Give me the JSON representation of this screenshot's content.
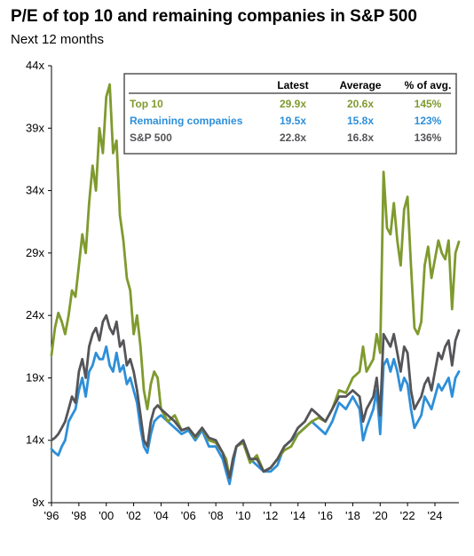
{
  "chart_data": {
    "type": "line",
    "title": "P/E of top 10 and remaining companies in S&P 500",
    "subtitle": "Next 12 months",
    "xlabel": "",
    "ylabel": "",
    "xlim": [
      1996,
      2025.75
    ],
    "ylim": [
      9,
      44
    ],
    "y_ticks": [
      9,
      14,
      19,
      24,
      29,
      34,
      39,
      44
    ],
    "y_tick_labels": [
      "9x",
      "14x",
      "19x",
      "24x",
      "29x",
      "34x",
      "39x",
      "44x"
    ],
    "x_ticks": [
      1996,
      1998,
      2000,
      2002,
      2004,
      2006,
      2008,
      2010,
      2012,
      2014,
      2016,
      2018,
      2020,
      2022,
      2024
    ],
    "x_tick_labels": [
      "'96",
      "'98",
      "'00",
      "'02",
      "'04",
      "'06",
      "'08",
      "'10",
      "'12",
      "'14",
      "'16",
      "'18",
      "'20",
      "'22",
      "'24"
    ],
    "grid": false,
    "legend": {
      "placement": "top-right",
      "headers": [
        "Latest",
        "Average",
        "% of avg."
      ],
      "rows": [
        {
          "label": "Top 10",
          "latest": "29.9x",
          "average": "20.6x",
          "pct": "145%",
          "color": "#7f9a2e"
        },
        {
          "label": "Remaining companies",
          "latest": "19.5x",
          "average": "15.8x",
          "pct": "123%",
          "color": "#2e8fd9"
        },
        {
          "label": "S&P 500",
          "latest": "22.8x",
          "average": "16.8x",
          "pct": "136%",
          "color": "#555559"
        }
      ]
    },
    "series": [
      {
        "name": "Top 10",
        "color": "#7f9a2e",
        "x": [
          1996.0,
          1996.25,
          1996.5,
          1996.75,
          1997.0,
          1997.25,
          1997.5,
          1997.75,
          1998.0,
          1998.25,
          1998.5,
          1998.75,
          1999.0,
          1999.25,
          1999.5,
          1999.75,
          2000.0,
          2000.25,
          2000.5,
          2000.75,
          2001.0,
          2001.25,
          2001.5,
          2001.75,
          2002.0,
          2002.25,
          2002.5,
          2002.75,
          2003.0,
          2003.25,
          2003.5,
          2003.75,
          2004.0,
          2004.5,
          2005.0,
          2005.5,
          2006.0,
          2006.5,
          2007.0,
          2007.5,
          2008.0,
          2008.5,
          2008.75,
          2009.0,
          2009.25,
          2009.5,
          2010.0,
          2010.5,
          2011.0,
          2011.5,
          2012.0,
          2012.5,
          2013.0,
          2013.5,
          2014.0,
          2014.5,
          2015.0,
          2015.5,
          2016.0,
          2016.5,
          2017.0,
          2017.5,
          2018.0,
          2018.5,
          2018.75,
          2019.0,
          2019.5,
          2019.75,
          2020.0,
          2020.25,
          2020.5,
          2020.75,
          2021.0,
          2021.25,
          2021.5,
          2021.75,
          2022.0,
          2022.25,
          2022.5,
          2022.75,
          2023.0,
          2023.25,
          2023.5,
          2023.75,
          2024.0,
          2024.25,
          2024.5,
          2024.75,
          2025.0,
          2025.25,
          2025.5,
          2025.75
        ],
        "values": [
          20.8,
          23.0,
          24.2,
          23.5,
          22.5,
          24.0,
          26.0,
          25.5,
          28.0,
          30.5,
          29.0,
          33.0,
          36.0,
          34.0,
          39.0,
          37.0,
          41.5,
          42.5,
          37.0,
          38.0,
          32.0,
          30.0,
          27.0,
          26.0,
          22.5,
          24.0,
          21.5,
          18.0,
          16.5,
          18.5,
          19.5,
          19.0,
          16.5,
          15.5,
          16.0,
          14.8,
          15.0,
          14.2,
          15.0,
          14.0,
          13.8,
          13.0,
          12.5,
          11.0,
          12.5,
          13.5,
          13.8,
          12.2,
          12.8,
          11.5,
          11.8,
          12.5,
          13.2,
          13.5,
          14.5,
          15.0,
          15.5,
          15.8,
          15.5,
          16.5,
          18.0,
          17.8,
          19.0,
          19.5,
          21.5,
          19.5,
          20.5,
          22.5,
          21.0,
          35.5,
          31.0,
          30.5,
          33.0,
          30.0,
          28.0,
          32.5,
          33.5,
          28.0,
          23.0,
          22.5,
          23.5,
          28.0,
          29.5,
          27.0,
          28.5,
          30.0,
          29.0,
          28.5,
          30.0,
          24.5,
          29.0,
          29.9
        ]
      },
      {
        "name": "Remaining companies",
        "color": "#2e8fd9",
        "x": [
          1996.0,
          1996.25,
          1996.5,
          1996.75,
          1997.0,
          1997.25,
          1997.5,
          1997.75,
          1998.0,
          1998.25,
          1998.5,
          1998.75,
          1999.0,
          1999.25,
          1999.5,
          1999.75,
          2000.0,
          2000.25,
          2000.5,
          2000.75,
          2001.0,
          2001.25,
          2001.5,
          2001.75,
          2002.0,
          2002.25,
          2002.5,
          2002.75,
          2003.0,
          2003.25,
          2003.5,
          2003.75,
          2004.0,
          2004.5,
          2005.0,
          2005.5,
          2006.0,
          2006.5,
          2007.0,
          2007.5,
          2008.0,
          2008.5,
          2008.75,
          2009.0,
          2009.25,
          2009.5,
          2010.0,
          2010.5,
          2011.0,
          2011.5,
          2012.0,
          2012.5,
          2013.0,
          2013.5,
          2014.0,
          2014.5,
          2015.0,
          2015.5,
          2016.0,
          2016.5,
          2017.0,
          2017.5,
          2018.0,
          2018.5,
          2018.75,
          2019.0,
          2019.5,
          2019.75,
          2020.0,
          2020.25,
          2020.5,
          2020.75,
          2021.0,
          2021.25,
          2021.5,
          2021.75,
          2022.0,
          2022.25,
          2022.5,
          2022.75,
          2023.0,
          2023.25,
          2023.5,
          2023.75,
          2024.0,
          2024.25,
          2024.5,
          2024.75,
          2025.0,
          2025.25,
          2025.5,
          2025.75
        ],
        "values": [
          13.3,
          13.0,
          12.8,
          13.5,
          14.0,
          15.5,
          16.0,
          16.5,
          18.0,
          19.0,
          17.5,
          19.5,
          20.0,
          21.0,
          20.5,
          20.5,
          21.5,
          20.0,
          19.5,
          21.0,
          19.5,
          20.0,
          18.5,
          19.0,
          18.0,
          17.0,
          15.0,
          13.5,
          13.0,
          14.5,
          15.5,
          15.8,
          16.0,
          15.5,
          15.0,
          14.5,
          14.8,
          14.0,
          14.8,
          13.5,
          13.5,
          12.5,
          11.5,
          10.5,
          12.0,
          13.5,
          14.0,
          12.5,
          12.0,
          11.5,
          11.5,
          12.0,
          13.5,
          14.0,
          14.5,
          15.0,
          15.5,
          15.0,
          14.5,
          15.5,
          17.0,
          16.5,
          17.5,
          16.5,
          14.0,
          15.0,
          16.5,
          18.0,
          14.5,
          20.0,
          20.5,
          19.5,
          20.5,
          19.5,
          18.0,
          19.0,
          18.5,
          16.5,
          15.0,
          15.5,
          16.0,
          17.5,
          17.0,
          16.5,
          17.5,
          18.5,
          18.0,
          18.5,
          19.0,
          17.5,
          19.0,
          19.5
        ]
      },
      {
        "name": "S&P 500",
        "color": "#555559",
        "x": [
          1996.0,
          1996.25,
          1996.5,
          1996.75,
          1997.0,
          1997.25,
          1997.5,
          1997.75,
          1998.0,
          1998.25,
          1998.5,
          1998.75,
          1999.0,
          1999.25,
          1999.5,
          1999.75,
          2000.0,
          2000.25,
          2000.5,
          2000.75,
          2001.0,
          2001.25,
          2001.5,
          2001.75,
          2002.0,
          2002.25,
          2002.5,
          2002.75,
          2003.0,
          2003.25,
          2003.5,
          2003.75,
          2004.0,
          2004.5,
          2005.0,
          2005.5,
          2006.0,
          2006.5,
          2007.0,
          2007.5,
          2008.0,
          2008.5,
          2008.75,
          2009.0,
          2009.25,
          2009.5,
          2010.0,
          2010.5,
          2011.0,
          2011.5,
          2012.0,
          2012.5,
          2013.0,
          2013.5,
          2014.0,
          2014.5,
          2015.0,
          2015.5,
          2016.0,
          2016.5,
          2017.0,
          2017.5,
          2018.0,
          2018.5,
          2018.75,
          2019.0,
          2019.5,
          2019.75,
          2020.0,
          2020.25,
          2020.5,
          2020.75,
          2021.0,
          2021.25,
          2021.5,
          2021.75,
          2022.0,
          2022.25,
          2022.5,
          2022.75,
          2023.0,
          2023.25,
          2023.5,
          2023.75,
          2024.0,
          2024.25,
          2024.5,
          2024.75,
          2025.0,
          2025.25,
          2025.5,
          2025.75
        ],
        "values": [
          14.0,
          14.2,
          14.5,
          15.0,
          15.5,
          16.5,
          17.5,
          17.0,
          19.5,
          20.5,
          19.0,
          21.5,
          22.5,
          23.0,
          22.0,
          23.5,
          24.0,
          23.0,
          22.5,
          23.5,
          21.5,
          22.0,
          20.0,
          20.5,
          19.5,
          18.0,
          16.0,
          14.0,
          13.5,
          15.5,
          16.5,
          16.8,
          16.5,
          16.0,
          15.5,
          14.8,
          15.0,
          14.3,
          15.0,
          14.2,
          14.0,
          13.0,
          12.0,
          11.0,
          12.5,
          13.5,
          14.0,
          12.5,
          12.5,
          11.5,
          11.8,
          12.5,
          13.5,
          14.0,
          15.0,
          15.5,
          16.5,
          16.0,
          15.5,
          16.5,
          17.5,
          17.5,
          18.0,
          17.5,
          15.5,
          16.5,
          17.5,
          19.0,
          16.0,
          22.5,
          22.0,
          21.5,
          22.5,
          21.0,
          19.5,
          21.5,
          21.0,
          18.0,
          16.5,
          17.0,
          17.5,
          18.5,
          19.0,
          18.0,
          19.5,
          21.0,
          20.5,
          21.5,
          22.0,
          20.0,
          22.0,
          22.8
        ]
      }
    ]
  }
}
